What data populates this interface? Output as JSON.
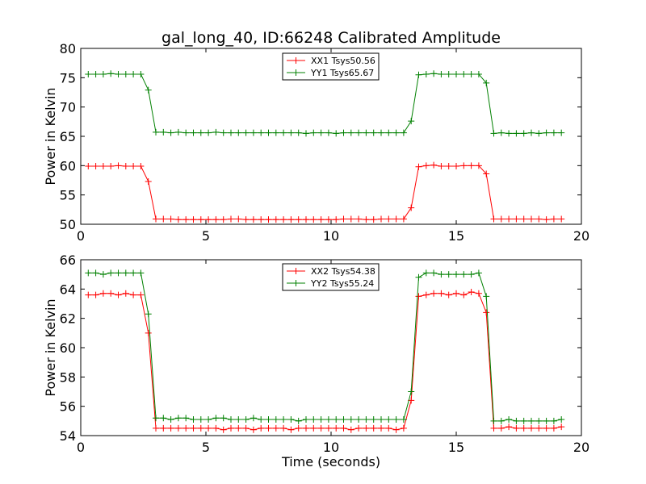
{
  "chart_data": [
    {
      "type": "line",
      "title": "gal_long_40, ID:66248 Calibrated Amplitude",
      "xlabel": "",
      "ylabel": "Power in Kelvin",
      "xlim": [
        0,
        20
      ],
      "ylim": [
        50,
        80
      ],
      "xticks": [
        0,
        5,
        10,
        15,
        20
      ],
      "yticks": [
        50,
        55,
        60,
        65,
        70,
        75,
        80
      ],
      "legend_position": "top-center",
      "marker": "+",
      "series": [
        {
          "name": "XX1 Tsys50.56",
          "color": "#ff0000",
          "x": [
            0.3,
            0.6,
            0.9,
            1.2,
            1.5,
            1.8,
            2.1,
            2.4,
            2.7,
            3.0,
            3.3,
            3.6,
            3.9,
            4.2,
            4.5,
            4.8,
            5.1,
            5.4,
            5.7,
            6.0,
            6.3,
            6.6,
            6.9,
            7.2,
            7.5,
            7.8,
            8.1,
            8.4,
            8.7,
            9.0,
            9.3,
            9.6,
            9.9,
            10.2,
            10.5,
            10.8,
            11.1,
            11.4,
            11.7,
            12.0,
            12.3,
            12.6,
            12.9,
            13.2,
            13.5,
            13.8,
            14.1,
            14.4,
            14.7,
            15.0,
            15.3,
            15.6,
            15.9,
            16.2,
            16.5,
            16.8,
            17.1,
            17.4,
            17.7,
            18.0,
            18.3,
            18.6,
            18.9,
            19.2
          ],
          "y": [
            59.9,
            59.9,
            59.9,
            59.9,
            60.0,
            59.9,
            59.9,
            59.9,
            57.3,
            50.9,
            50.9,
            50.9,
            50.8,
            50.8,
            50.8,
            50.8,
            50.8,
            50.8,
            50.8,
            50.9,
            50.9,
            50.8,
            50.8,
            50.8,
            50.8,
            50.8,
            50.8,
            50.8,
            50.8,
            50.8,
            50.8,
            50.8,
            50.8,
            50.8,
            50.9,
            50.9,
            50.9,
            50.8,
            50.8,
            50.9,
            50.9,
            50.9,
            50.9,
            52.8,
            59.8,
            60.0,
            60.1,
            59.9,
            59.9,
            59.9,
            60.0,
            60.0,
            60.0,
            58.6,
            50.9,
            50.9,
            50.9,
            50.9,
            50.9,
            50.9,
            50.9,
            50.8,
            50.9,
            50.9
          ]
        },
        {
          "name": "YY1 Tsys65.67",
          "color": "#008000",
          "x": [
            0.3,
            0.6,
            0.9,
            1.2,
            1.5,
            1.8,
            2.1,
            2.4,
            2.7,
            3.0,
            3.3,
            3.6,
            3.9,
            4.2,
            4.5,
            4.8,
            5.1,
            5.4,
            5.7,
            6.0,
            6.3,
            6.6,
            6.9,
            7.2,
            7.5,
            7.8,
            8.1,
            8.4,
            8.7,
            9.0,
            9.3,
            9.6,
            9.9,
            10.2,
            10.5,
            10.8,
            11.1,
            11.4,
            11.7,
            12.0,
            12.3,
            12.6,
            12.9,
            13.2,
            13.5,
            13.8,
            14.1,
            14.4,
            14.7,
            15.0,
            15.3,
            15.6,
            15.9,
            16.2,
            16.5,
            16.8,
            17.1,
            17.4,
            17.7,
            18.0,
            18.3,
            18.6,
            18.9,
            19.2
          ],
          "y": [
            75.6,
            75.6,
            75.6,
            75.7,
            75.6,
            75.6,
            75.6,
            75.6,
            72.9,
            65.7,
            65.7,
            65.6,
            65.7,
            65.6,
            65.6,
            65.6,
            65.6,
            65.7,
            65.6,
            65.6,
            65.6,
            65.6,
            65.6,
            65.6,
            65.6,
            65.6,
            65.6,
            65.6,
            65.6,
            65.5,
            65.6,
            65.6,
            65.6,
            65.5,
            65.6,
            65.6,
            65.6,
            65.6,
            65.6,
            65.6,
            65.6,
            65.6,
            65.6,
            67.6,
            75.5,
            75.6,
            75.7,
            75.6,
            75.6,
            75.6,
            75.6,
            75.6,
            75.6,
            74.1,
            65.5,
            65.6,
            65.5,
            65.5,
            65.5,
            65.6,
            65.5,
            65.6,
            65.6,
            65.6
          ]
        }
      ]
    },
    {
      "type": "line",
      "title": "",
      "xlabel": "Time (seconds)",
      "ylabel": "Power in Kelvin",
      "xlim": [
        0,
        20
      ],
      "ylim": [
        54,
        66
      ],
      "xticks": [
        0,
        5,
        10,
        15,
        20
      ],
      "yticks": [
        54,
        56,
        58,
        60,
        62,
        64,
        66
      ],
      "legend_position": "top-center",
      "marker": "+",
      "series": [
        {
          "name": "XX2 Tsys54.38",
          "color": "#ff0000",
          "x": [
            0.3,
            0.6,
            0.9,
            1.2,
            1.5,
            1.8,
            2.1,
            2.4,
            2.7,
            3.0,
            3.3,
            3.6,
            3.9,
            4.2,
            4.5,
            4.8,
            5.1,
            5.4,
            5.7,
            6.0,
            6.3,
            6.6,
            6.9,
            7.2,
            7.5,
            7.8,
            8.1,
            8.4,
            8.7,
            9.0,
            9.3,
            9.6,
            9.9,
            10.2,
            10.5,
            10.8,
            11.1,
            11.4,
            11.7,
            12.0,
            12.3,
            12.6,
            12.9,
            13.2,
            13.5,
            13.8,
            14.1,
            14.4,
            14.7,
            15.0,
            15.3,
            15.6,
            15.9,
            16.2,
            16.5,
            16.8,
            17.1,
            17.4,
            17.7,
            18.0,
            18.3,
            18.6,
            18.9,
            19.2
          ],
          "y": [
            63.6,
            63.6,
            63.7,
            63.7,
            63.6,
            63.7,
            63.6,
            63.6,
            61.0,
            54.5,
            54.5,
            54.5,
            54.5,
            54.5,
            54.5,
            54.5,
            54.5,
            54.5,
            54.4,
            54.5,
            54.5,
            54.5,
            54.4,
            54.5,
            54.5,
            54.5,
            54.5,
            54.4,
            54.5,
            54.5,
            54.5,
            54.5,
            54.5,
            54.5,
            54.5,
            54.4,
            54.5,
            54.5,
            54.5,
            54.5,
            54.5,
            54.4,
            54.5,
            56.4,
            63.5,
            63.6,
            63.7,
            63.7,
            63.6,
            63.7,
            63.6,
            63.8,
            63.7,
            62.4,
            54.5,
            54.5,
            54.6,
            54.5,
            54.5,
            54.5,
            54.5,
            54.5,
            54.5,
            54.6
          ]
        },
        {
          "name": "YY2 Tsys55.24",
          "color": "#008000",
          "x": [
            0.3,
            0.6,
            0.9,
            1.2,
            1.5,
            1.8,
            2.1,
            2.4,
            2.7,
            3.0,
            3.3,
            3.6,
            3.9,
            4.2,
            4.5,
            4.8,
            5.1,
            5.4,
            5.7,
            6.0,
            6.3,
            6.6,
            6.9,
            7.2,
            7.5,
            7.8,
            8.1,
            8.4,
            8.7,
            9.0,
            9.3,
            9.6,
            9.9,
            10.2,
            10.5,
            10.8,
            11.1,
            11.4,
            11.7,
            12.0,
            12.3,
            12.6,
            12.9,
            13.2,
            13.5,
            13.8,
            14.1,
            14.4,
            14.7,
            15.0,
            15.3,
            15.6,
            15.9,
            16.2,
            16.5,
            16.8,
            17.1,
            17.4,
            17.7,
            18.0,
            18.3,
            18.6,
            18.9,
            19.2
          ],
          "y": [
            65.1,
            65.1,
            65.0,
            65.1,
            65.1,
            65.1,
            65.1,
            65.1,
            62.3,
            55.2,
            55.2,
            55.1,
            55.2,
            55.2,
            55.1,
            55.1,
            55.1,
            55.2,
            55.2,
            55.1,
            55.1,
            55.1,
            55.2,
            55.1,
            55.1,
            55.1,
            55.1,
            55.1,
            55.0,
            55.1,
            55.1,
            55.1,
            55.1,
            55.1,
            55.1,
            55.1,
            55.1,
            55.1,
            55.1,
            55.1,
            55.1,
            55.1,
            55.1,
            57.0,
            64.8,
            65.1,
            65.1,
            65.0,
            65.0,
            65.0,
            65.0,
            65.0,
            65.1,
            63.5,
            55.0,
            55.0,
            55.1,
            55.0,
            55.0,
            55.0,
            55.0,
            55.0,
            55.0,
            55.1
          ]
        }
      ]
    }
  ]
}
